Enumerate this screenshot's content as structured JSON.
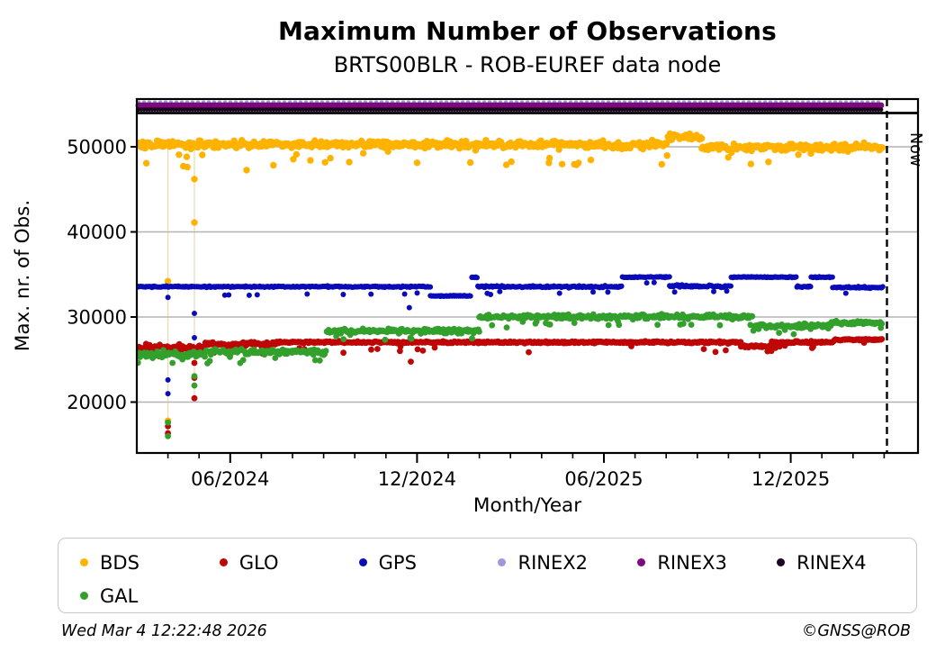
{
  "title": "Maximum Number of Observations",
  "subtitle": "BRTS00BLR - ROB-EUREF data node",
  "footer": {
    "timestamp": "Wed Mar  4 12:22:48 2026",
    "copyright": "©GNSS@ROB"
  },
  "colors": {
    "bds": "#FFB300",
    "glo": "#BE0606",
    "gps": "#0B0BB8",
    "gal": "#33A02C",
    "rinex2": "#9C99DB",
    "rinex3": "#7D0B7D",
    "rinex4": "#1C0522",
    "gridline": "#b3b3b3",
    "axis": "#000000"
  },
  "chart_data": {
    "type": "scatter",
    "title": "Maximum Number of Observations",
    "subtitle": "BRTS00BLR - ROB-EUREF data node",
    "xlabel": "Month/Year",
    "ylabel": "Max. nr. of Obs.",
    "now_label": "Now",
    "grid": true,
    "legend_position": "bottom",
    "x_start_month": "03/2024",
    "x_end_month": "03/2026",
    "x_ticks_major": [
      {
        "month_index": 3,
        "label": "06/2024"
      },
      {
        "month_index": 9,
        "label": "12/2024"
      },
      {
        "month_index": 15,
        "label": "06/2025"
      },
      {
        "month_index": 21,
        "label": "12/2025"
      }
    ],
    "x_minor_tick_every_months": 1,
    "y_ticks": [
      20000,
      30000,
      40000,
      50000
    ],
    "ylim": [
      14000,
      54000
    ],
    "now_month_index": 24.1,
    "legend": [
      {
        "label": "BDS",
        "color": "#FFB300"
      },
      {
        "label": "GLO",
        "color": "#BE0606"
      },
      {
        "label": "GPS",
        "color": "#0B0BB8"
      },
      {
        "label": "RINEX2",
        "color": "#9C99DB"
      },
      {
        "label": "RINEX3",
        "color": "#7D0B7D"
      },
      {
        "label": "RINEX4",
        "color": "#1C0522"
      },
      {
        "label": "GAL",
        "color": "#33A02C"
      }
    ],
    "droplines": [
      {
        "month": 1.0,
        "v_top": 50800,
        "v_bottom": 16200
      },
      {
        "month": 1.85,
        "v_top": 50800,
        "v_bottom": 20300
      }
    ],
    "series": [
      {
        "name": "BDS",
        "color": "#FFB300",
        "segments": [
          {
            "m0": 0,
            "m1": 17.05,
            "v": 50250,
            "jitter": 620,
            "dip_rate": 0.06,
            "dip_min": 900,
            "dip_max": 2600
          },
          {
            "m0": 17.05,
            "m1": 18.15,
            "v": 51150,
            "jitter": 520,
            "dip_rate": 0.03,
            "dip_min": 600,
            "dip_max": 1500
          },
          {
            "m0": 18.15,
            "m1": 23.95,
            "v": 49950,
            "jitter": 600,
            "dip_rate": 0.06,
            "dip_min": 700,
            "dip_max": 2000
          }
        ],
        "outliers": [
          [
            1.0,
            34200
          ],
          [
            1.0,
            17800
          ],
          [
            1.85,
            46200
          ],
          [
            1.85,
            41100
          ]
        ]
      },
      {
        "name": "GLO",
        "color": "#BE0606",
        "segments": [
          {
            "m0": 0,
            "m1": 2.2,
            "v": 26400,
            "jitter": 520,
            "dip_rate": 0.05,
            "dip_min": 500,
            "dip_max": 1200
          },
          {
            "m0": 2.2,
            "m1": 4.5,
            "v": 26800,
            "jitter": 330,
            "dip_rate": 0.08,
            "dip_min": 500,
            "dip_max": 1300
          },
          {
            "m0": 4.5,
            "m1": 19.4,
            "v": 27030,
            "jitter": 170,
            "dip_rate": 0.025,
            "dip_min": 500,
            "dip_max": 1300
          },
          {
            "m0": 19.4,
            "m1": 20.4,
            "v": 26550,
            "jitter": 260,
            "dip_rate": 0.05,
            "dip_min": 300,
            "dip_max": 700
          },
          {
            "m0": 20.4,
            "m1": 22.4,
            "v": 27030,
            "jitter": 190,
            "dip_rate": 0.03,
            "dip_min": 400,
            "dip_max": 800
          },
          {
            "m0": 22.4,
            "m1": 23.95,
            "v": 27330,
            "jitter": 120,
            "dip_rate": 0.01,
            "dip_min": 200,
            "dip_max": 500
          }
        ],
        "outliers": [
          [
            1.0,
            17150
          ],
          [
            1.0,
            16350
          ],
          [
            1.85,
            24600
          ],
          [
            1.85,
            22850
          ],
          [
            1.85,
            20450
          ],
          [
            8.45,
            26000
          ],
          [
            8.8,
            24750
          ]
        ]
      },
      {
        "name": "GPS",
        "color": "#0B0BB8",
        "segments": [
          {
            "m0": 0,
            "m1": 9.42,
            "v": 33560,
            "jitter": 110,
            "dip_rate": 0.025,
            "dip_min": 800,
            "dip_max": 1200
          },
          {
            "m0": 9.42,
            "m1": 10.72,
            "v": 32480,
            "jitter": 90,
            "dip_rate": 0.01,
            "dip_min": 300,
            "dip_max": 600
          },
          {
            "m0": 10.75,
            "m1": 10.95,
            "v": 34660,
            "jitter": 70,
            "dip_rate": 0,
            "dip_min": 0,
            "dip_max": 0
          },
          {
            "m0": 10.95,
            "m1": 15.6,
            "v": 33560,
            "jitter": 160,
            "dip_rate": 0.04,
            "dip_min": 600,
            "dip_max": 900
          },
          {
            "m0": 15.6,
            "m1": 17.1,
            "v": 34680,
            "jitter": 80,
            "dip_rate": 0.02,
            "dip_min": 400,
            "dip_max": 700
          },
          {
            "m0": 17.1,
            "m1": 19.1,
            "v": 33600,
            "jitter": 230,
            "dip_rate": 0.05,
            "dip_min": 500,
            "dip_max": 900
          },
          {
            "m0": 19.1,
            "m1": 21.2,
            "v": 34680,
            "jitter": 90,
            "dip_rate": 0.03,
            "dip_min": 800,
            "dip_max": 1600
          },
          {
            "m0": 21.2,
            "m1": 21.65,
            "v": 33560,
            "jitter": 120,
            "dip_rate": 0.02,
            "dip_min": 300,
            "dip_max": 600
          },
          {
            "m0": 21.65,
            "m1": 22.35,
            "v": 34680,
            "jitter": 80,
            "dip_rate": 0.02,
            "dip_min": 400,
            "dip_max": 800
          },
          {
            "m0": 22.35,
            "m1": 23.95,
            "v": 33470,
            "jitter": 140,
            "dip_rate": 0.05,
            "dip_min": 500,
            "dip_max": 800
          }
        ],
        "outliers": [
          [
            1.0,
            32300
          ],
          [
            1.0,
            22600
          ],
          [
            1.0,
            21000
          ],
          [
            1.85,
            30420
          ],
          [
            1.85,
            27570
          ],
          [
            8.75,
            31100
          ]
        ]
      },
      {
        "name": "RINEX2",
        "color": "#9C99DB",
        "band_value": 55240,
        "band_start_month": 0,
        "band_end_month": 23.95
      },
      {
        "name": "RINEX3",
        "color": "#7D0B7D",
        "band_value": 54870,
        "band_start_month": 0,
        "band_end_month": 23.95
      },
      {
        "name": "RINEX4",
        "color": "#1C0522",
        "band_value": 54370,
        "band_start_month": 0,
        "band_end_month": 23.95
      },
      {
        "name": "GAL",
        "color": "#33A02C",
        "segments": [
          {
            "m0": 0,
            "m1": 2.2,
            "v": 25600,
            "jitter": 620,
            "dip_rate": 0.05,
            "dip_min": 400,
            "dip_max": 1100
          },
          {
            "m0": 2.2,
            "m1": 6.1,
            "v": 25950,
            "jitter": 520,
            "dip_rate": 0.06,
            "dip_min": 400,
            "dip_max": 1200
          },
          {
            "m0": 6.1,
            "m1": 11.0,
            "v": 28350,
            "jitter": 380,
            "dip_rate": 0.04,
            "dip_min": 400,
            "dip_max": 1000
          },
          {
            "m0": 11.0,
            "m1": 19.8,
            "v": 30030,
            "jitter": 400,
            "dip_rate": 0.05,
            "dip_min": 500,
            "dip_max": 1200
          },
          {
            "m0": 19.8,
            "m1": 22.3,
            "v": 28950,
            "jitter": 430,
            "dip_rate": 0.04,
            "dip_min": 400,
            "dip_max": 900
          },
          {
            "m0": 22.3,
            "m1": 23.95,
            "v": 29300,
            "jitter": 320,
            "dip_rate": 0.02,
            "dip_min": 300,
            "dip_max": 700
          }
        ],
        "outliers": [
          [
            1.0,
            17600
          ],
          [
            1.0,
            16000
          ],
          [
            1.85,
            23050
          ],
          [
            1.85,
            21950
          ]
        ]
      }
    ]
  }
}
